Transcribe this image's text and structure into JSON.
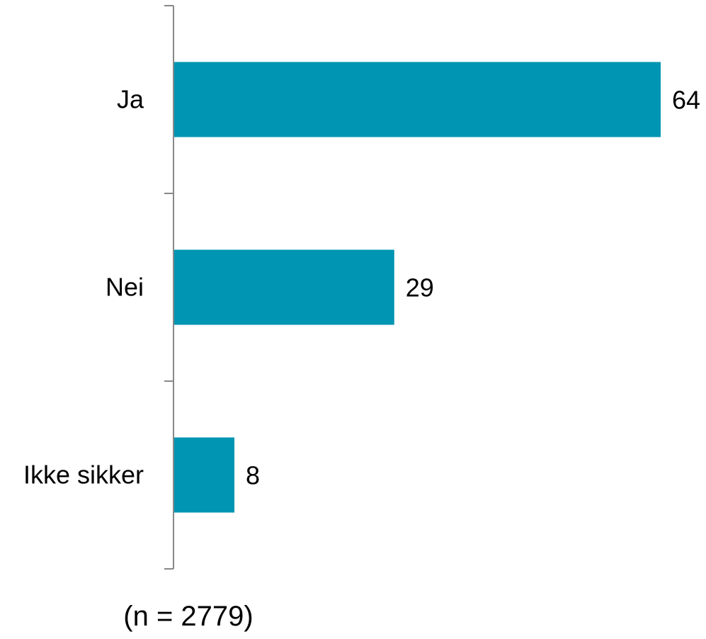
{
  "chart_data": {
    "type": "bar",
    "orientation": "horizontal",
    "categories": [
      "Ja",
      "Nei",
      "Ikke sikker"
    ],
    "values": [
      64,
      29,
      8
    ],
    "title": "",
    "xlabel": "",
    "ylabel": "",
    "xlim": [
      0,
      64
    ],
    "grid": false,
    "legend": "none",
    "bar_color": "#0095b3",
    "axis_color": "#888888",
    "data_labels": true
  },
  "footnote": "(n = 2779)"
}
